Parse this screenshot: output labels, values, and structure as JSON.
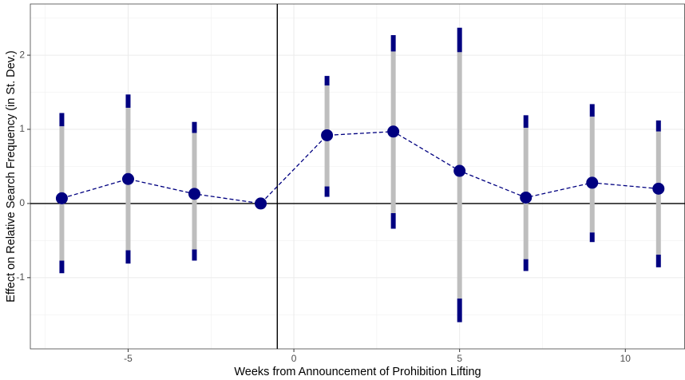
{
  "chart_data": {
    "type": "pointrange",
    "x_label": "Weeks from Announcement of Prohibition Lifting",
    "y_label": "Effect on Relative Search Frequency (in St. Dev.)",
    "x": [
      -7,
      -5,
      -3,
      -1,
      1,
      3,
      5,
      7,
      9,
      11
    ],
    "values": [
      0.07,
      0.33,
      0.13,
      0,
      0.92,
      0.97,
      0.44,
      0.08,
      0.28,
      0.2
    ],
    "lower_95": [
      -0.94,
      -0.81,
      -0.77,
      null,
      0.09,
      -0.34,
      -1.6,
      -0.91,
      -0.52,
      -0.86
    ],
    "lower_90": [
      -0.77,
      -0.63,
      -0.62,
      null,
      0.23,
      -0.13,
      -1.28,
      -0.75,
      -0.39,
      -0.69
    ],
    "upper_90": [
      1.04,
      1.29,
      0.95,
      null,
      1.59,
      2.05,
      2.04,
      1.02,
      1.17,
      0.97
    ],
    "upper_95": [
      1.22,
      1.47,
      1.1,
      null,
      1.72,
      2.27,
      2.37,
      1.19,
      1.34,
      1.12
    ],
    "color": "#000080",
    "inner_color": "#bebebe",
    "xlim": [
      -7.95,
      11.8
    ],
    "ylim": [
      -1.96,
      2.69
    ],
    "xticks": [
      -5,
      0,
      5,
      10
    ],
    "yticks": [
      -1,
      0,
      1,
      2
    ],
    "vline": -0.5,
    "hline": 0,
    "grid": true
  }
}
